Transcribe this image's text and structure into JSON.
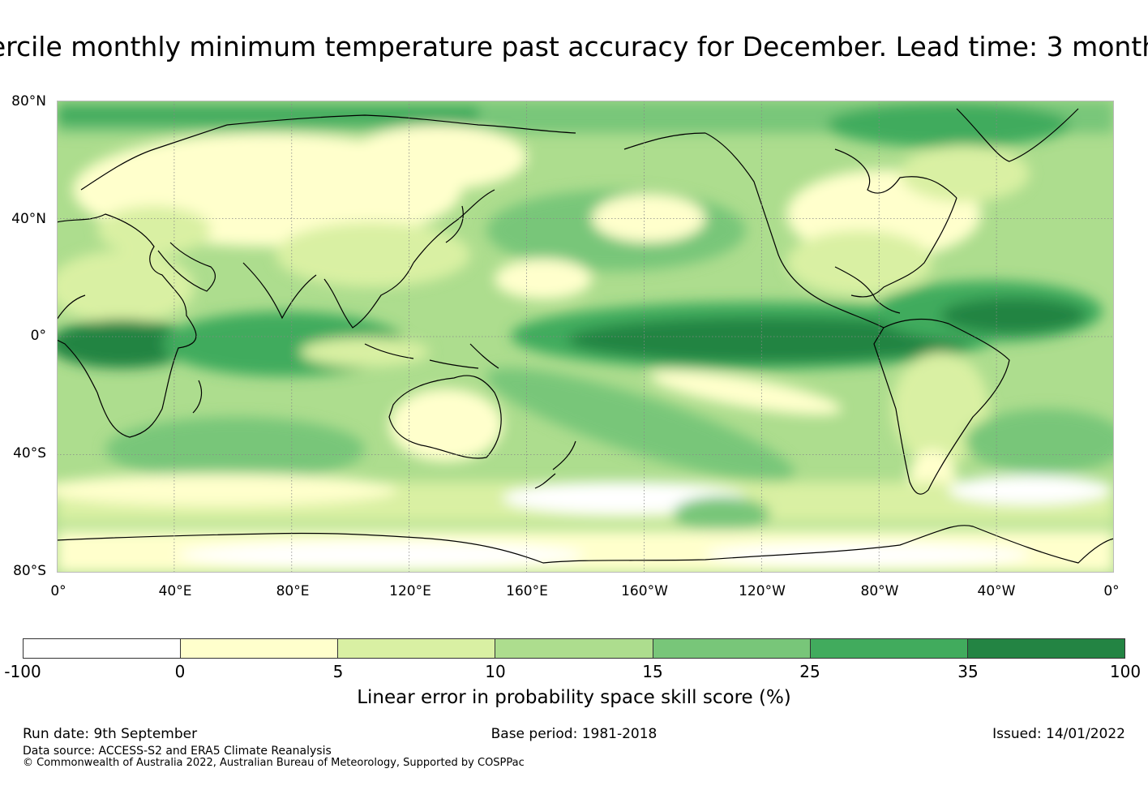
{
  "title": "ercile monthly minimum temperature past accuracy for December. Lead time: 3 month",
  "map": {
    "lat_ticks": [
      "80°N",
      "40°N",
      "0°",
      "40°S",
      "80°S"
    ],
    "lon_ticks": [
      "0°",
      "40°E",
      "80°E",
      "120°E",
      "160°E",
      "160°W",
      "120°W",
      "80°W",
      "40°W",
      "0°"
    ],
    "lat_range": [
      -80,
      80
    ],
    "lon_range": [
      0,
      360
    ],
    "gridlines": true,
    "gridline_style": "dotted"
  },
  "colorbar": {
    "label": "Linear error in probability space skill score (%)",
    "ticks": [
      "-100",
      "0",
      "5",
      "10",
      "15",
      "25",
      "35",
      "100"
    ],
    "colors": [
      "#ffffff",
      "#ffffcc",
      "#d9f0a3",
      "#addd8e",
      "#78c679",
      "#41ab5d",
      "#238443"
    ]
  },
  "footer": {
    "run_date": "Run date: 9th September",
    "base_period": "Base period: 1981-2018",
    "issued": "Issued: 14/01/2022",
    "data_source": "Data source: ACCESS-S2 and ERA5 Climate Reanalysis",
    "copyright": "© Commonwealth of Australia 2022, Australian Bureau of Meteorology, Supported by COSPPac"
  }
}
